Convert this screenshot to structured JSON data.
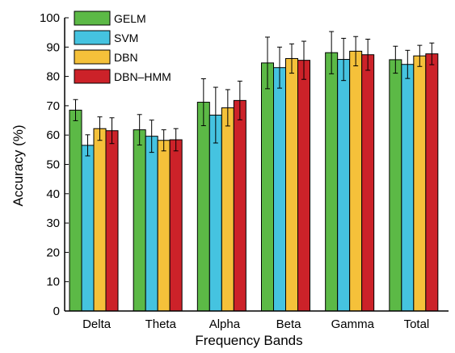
{
  "chart_data": {
    "type": "bar",
    "title": "",
    "xlabel": "Frequency Bands",
    "ylabel": "Accuracy (%)",
    "ylim": [
      0,
      100
    ],
    "yticks": [
      0,
      10,
      20,
      30,
      40,
      50,
      60,
      70,
      80,
      90,
      100
    ],
    "grid": false,
    "legend_position": "top-left",
    "categories": [
      "Delta",
      "Theta",
      "Alpha",
      "Beta",
      "Gamma",
      "Total"
    ],
    "series": [
      {
        "name": "GELM",
        "color": "#5cb946",
        "values": [
          68.5,
          61.8,
          71.2,
          84.6,
          88.1,
          85.7
        ],
        "errors": [
          3.6,
          5.2,
          8.0,
          8.8,
          7.2,
          4.6
        ]
      },
      {
        "name": "SVM",
        "color": "#45c3e0",
        "values": [
          56.5,
          59.6,
          66.8,
          83.0,
          85.8,
          84.1
        ],
        "errors": [
          3.6,
          5.5,
          9.5,
          7.0,
          7.2,
          4.8
        ]
      },
      {
        "name": "DBN",
        "color": "#f5c13a",
        "values": [
          62.2,
          58.2,
          69.3,
          86.1,
          88.6,
          87.0
        ],
        "errors": [
          4.0,
          3.6,
          6.2,
          5.0,
          5.0,
          3.6
        ]
      },
      {
        "name": "DBN–HMM",
        "color": "#cc2229",
        "values": [
          61.5,
          58.4,
          71.8,
          85.5,
          87.4,
          87.7
        ],
        "errors": [
          4.4,
          3.8,
          6.6,
          6.5,
          5.3,
          3.7
        ]
      }
    ]
  }
}
